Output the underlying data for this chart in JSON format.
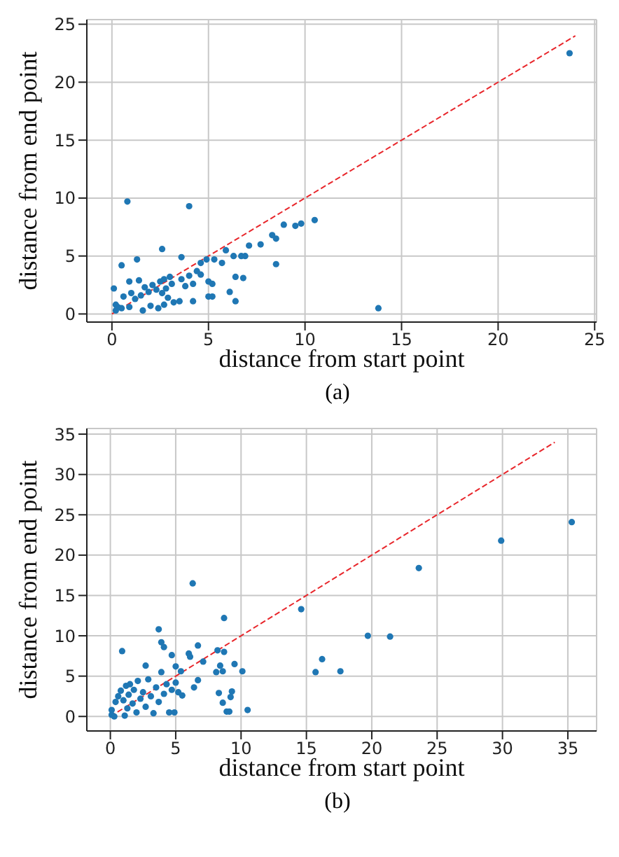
{
  "chart_data": [
    {
      "type": "scatter",
      "xlabel": "distance from start point",
      "ylabel": "distance from end point",
      "annotations": [
        "(a)"
      ],
      "xlim": [
        -1.3,
        25.1
      ],
      "ylim": [
        -0.7,
        25.4
      ],
      "xticks": [
        0,
        5,
        10,
        15,
        20,
        25
      ],
      "yticks": [
        0,
        5,
        10,
        15,
        20,
        25
      ],
      "grid": true,
      "series": [
        {
          "color": "#1f77b4",
          "marker": "circle",
          "x": [
            23.7,
            0.8,
            4.0,
            13.8,
            10.5,
            9.8,
            9.5,
            8.9,
            8.3,
            8.5,
            8.5,
            7.7,
            7.1,
            6.9,
            6.3,
            6.7,
            2.6,
            0.5,
            1.3,
            3.6,
            6.4,
            6.8,
            6.1,
            6.4,
            5.9,
            5.3,
            5.7,
            4.9,
            4.6,
            5.0,
            5.2,
            5.0,
            5.2,
            4.2,
            3.5,
            2.7,
            0.9,
            1.4,
            0.1,
            0.2,
            0.5,
            0.6,
            0.9,
            1.0,
            1.2,
            1.5,
            1.6,
            1.7,
            1.9,
            2.0,
            2.1,
            2.3,
            2.4,
            2.5,
            2.6,
            2.7,
            2.8,
            2.9,
            3.0,
            3.1,
            3.2,
            3.6,
            3.8,
            4.0,
            4.2,
            4.4,
            4.6,
            0.3,
            0.2
          ],
          "values": [
            22.5,
            9.7,
            9.3,
            0.5,
            8.1,
            7.8,
            7.6,
            7.7,
            6.8,
            6.5,
            4.3,
            6.0,
            5.9,
            5.0,
            5.0,
            5.0,
            5.6,
            4.2,
            4.7,
            4.9,
            3.2,
            3.1,
            1.9,
            1.1,
            5.5,
            4.7,
            4.4,
            4.7,
            4.4,
            2.8,
            2.6,
            1.5,
            1.5,
            1.1,
            1.1,
            0.8,
            2.8,
            2.9,
            2.2,
            0.8,
            0.5,
            1.5,
            0.6,
            1.8,
            1.3,
            1.6,
            0.3,
            2.3,
            1.9,
            0.7,
            2.5,
            2.1,
            0.5,
            2.8,
            1.8,
            3.0,
            2.2,
            1.4,
            3.2,
            2.6,
            1.0,
            3.0,
            2.4,
            3.3,
            2.6,
            3.7,
            3.4,
            0.6,
            0.3
          ]
        },
        {
          "type": "line",
          "color": "#e8262b",
          "line_style": "dashed",
          "x": [
            0,
            24
          ],
          "values": [
            0,
            24
          ]
        }
      ]
    },
    {
      "type": "scatter",
      "xlabel": "distance from start point",
      "ylabel": "distance from end point",
      "annotations": [
        "(b)"
      ],
      "xlim": [
        -1.8,
        37.2
      ],
      "ylim": [
        -1.8,
        35.7
      ],
      "xticks": [
        0,
        5,
        10,
        15,
        20,
        25,
        30,
        35
      ],
      "yticks": [
        0,
        5,
        10,
        15,
        20,
        25,
        30,
        35
      ],
      "grid": true,
      "series": [
        {
          "color": "#1f77b4",
          "marker": "circle",
          "x": [
            35.3,
            29.9,
            23.6,
            19.7,
            21.4,
            14.6,
            16.2,
            15.7,
            17.6,
            6.3,
            8.7,
            3.7,
            3.9,
            4.1,
            0.9,
            9.5,
            10.1,
            8.7,
            8.2,
            6.7,
            6.0,
            6.1,
            4.7,
            7.1,
            2.7,
            6.7,
            6.4,
            8.3,
            8.6,
            8.9,
            9.1,
            10.5,
            9.2,
            9.3,
            8.1,
            8.6,
            8.4,
            5.0,
            5.4,
            0.1,
            0.3,
            0.4,
            0.6,
            0.8,
            1.0,
            1.2,
            1.3,
            1.4,
            1.5,
            1.7,
            1.8,
            2.0,
            2.1,
            2.3,
            2.5,
            2.7,
            2.9,
            3.1,
            3.3,
            3.5,
            3.7,
            3.9,
            4.1,
            4.3,
            4.5,
            4.7,
            4.9,
            5.0,
            5.2,
            5.5,
            0.1,
            1.1
          ],
          "values": [
            24.1,
            21.8,
            18.4,
            10.0,
            9.9,
            13.3,
            7.1,
            5.5,
            5.6,
            16.5,
            12.2,
            10.8,
            9.2,
            8.6,
            8.1,
            6.5,
            5.6,
            8.0,
            8.2,
            8.8,
            7.8,
            7.4,
            7.6,
            6.8,
            6.3,
            4.5,
            3.6,
            2.9,
            1.7,
            0.6,
            0.6,
            0.8,
            2.4,
            3.1,
            5.5,
            5.6,
            6.3,
            6.2,
            5.6,
            0.2,
            0.0,
            1.8,
            2.5,
            3.2,
            2.0,
            3.8,
            1.0,
            2.7,
            4.0,
            1.6,
            3.3,
            0.5,
            4.4,
            2.2,
            3.0,
            1.2,
            4.6,
            2.5,
            0.4,
            3.6,
            1.8,
            5.5,
            2.8,
            4.0,
            0.5,
            3.3,
            0.5,
            4.2,
            3.0,
            2.6,
            0.8,
            0.1
          ]
        },
        {
          "type": "line",
          "color": "#e8262b",
          "line_style": "dashed",
          "x": [
            0,
            34
          ],
          "values": [
            0,
            34
          ]
        }
      ]
    }
  ]
}
